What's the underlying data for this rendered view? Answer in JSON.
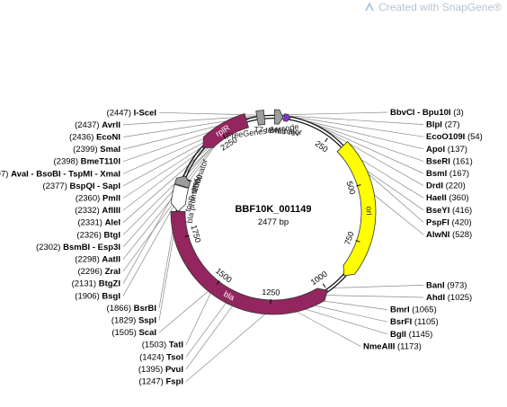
{
  "watermark": "Created with SnapGene®",
  "plasmid": {
    "name": "BBF10K_001149",
    "length": 2477,
    "length_label": "2477 bp"
  },
  "colors": {
    "backbone": "#111111",
    "ori": "#ffff00",
    "bla": "#93265e",
    "rplR": "#93265e",
    "promoter": "#ffffff",
    "terminator": "#9e9e9e",
    "primer": "#8a2be2"
  },
  "ticks": [
    {
      "pos": 250,
      "label": "250"
    },
    {
      "pos": 500,
      "label": "500"
    },
    {
      "pos": 750,
      "label": "750"
    },
    {
      "pos": 1000,
      "label": "1000"
    },
    {
      "pos": 1250,
      "label": "1250"
    },
    {
      "pos": 1500,
      "label": "1500"
    },
    {
      "pos": 1750,
      "label": "1750"
    },
    {
      "pos": 2000,
      "label": "2000"
    },
    {
      "pos": 2250,
      "label": "2250"
    }
  ],
  "features": [
    {
      "id": "ori",
      "label": "ori",
      "start": 320,
      "end": 908,
      "dir": 1,
      "color": "#ffff00",
      "type": "ori"
    },
    {
      "id": "bla",
      "label": "bla",
      "start": 1000,
      "end": 1860,
      "dir": -1,
      "color": "#93265e",
      "type": "cds"
    },
    {
      "id": "rplR",
      "label": "rplR",
      "start": 2150,
      "end": 2365,
      "dir": -1,
      "color": "#93265e",
      "type": "cds"
    },
    {
      "id": "bla-promoter",
      "label": "bla promoter",
      "start": 1860,
      "end": 1965,
      "dir": -1,
      "color": "#ffffff",
      "type": "promoter"
    },
    {
      "id": "tonB-terminator",
      "label": "tonB terminator",
      "start": 1968,
      "end": 2010,
      "dir": 1,
      "color": "#9e9e9e",
      "type": "terminator"
    },
    {
      "id": "FreeGenes-Barcode",
      "label": "FreeGenes Barcode",
      "start": 2410,
      "end": 2440,
      "dir": 0,
      "color": "#9e9e9e",
      "type": "misc"
    },
    {
      "id": "T7-terminator",
      "label": "T7 terminator",
      "start": 5,
      "end": 40,
      "dir": 1,
      "color": "#9e9e9e",
      "type": "terminator"
    },
    {
      "id": "M13-rev",
      "label": "M13 rev",
      "start": 45,
      "end": 70,
      "dir": 1,
      "color": "#8a2be2",
      "type": "primer"
    }
  ],
  "sites": [
    {
      "name": "I-SceI",
      "pos": "2447",
      "side": "L",
      "pos_num": 2447
    },
    {
      "name": "AvrII",
      "pos": "2437",
      "side": "L",
      "pos_num": 2437
    },
    {
      "name": "EcoNI",
      "pos": "2436",
      "side": "L",
      "pos_num": 2436
    },
    {
      "name": "SmaI",
      "pos": "2399",
      "side": "L",
      "pos_num": 2399
    },
    {
      "name": "BmeT110I",
      "pos": "2398",
      "side": "L",
      "pos_num": 2398
    },
    {
      "name": "AvaI - BsoBI - TspMI - XmaI",
      "pos": "2397",
      "side": "L",
      "pos_num": 2397
    },
    {
      "name": "BspQI - SapI",
      "pos": "2377",
      "side": "L",
      "pos_num": 2377
    },
    {
      "name": "PmlI",
      "pos": "2360",
      "side": "L",
      "pos_num": 2360
    },
    {
      "name": "AflIII",
      "pos": "2332",
      "side": "L",
      "pos_num": 2332
    },
    {
      "name": "AleI",
      "pos": "2331",
      "side": "L",
      "pos_num": 2331
    },
    {
      "name": "BtgI",
      "pos": "2326",
      "side": "L",
      "pos_num": 2326
    },
    {
      "name": "BsmBI - Esp3I",
      "pos": "2302",
      "side": "L",
      "pos_num": 2302
    },
    {
      "name": "AatII",
      "pos": "2298",
      "side": "L",
      "pos_num": 2298
    },
    {
      "name": "ZraI",
      "pos": "2296",
      "side": "L",
      "pos_num": 2296
    },
    {
      "name": "BtgZI",
      "pos": "2131",
      "side": "L",
      "pos_num": 2131
    },
    {
      "name": "BsgI",
      "pos": "1906",
      "side": "L",
      "pos_num": 1906
    },
    {
      "name": "BsrBI",
      "pos": "1866",
      "side": "L",
      "pos_num": 1866
    },
    {
      "name": "SspI",
      "pos": "1829",
      "side": "L",
      "pos_num": 1829
    },
    {
      "name": "ScaI",
      "pos": "1505",
      "side": "L",
      "pos_num": 1505
    },
    {
      "name": "TatI",
      "pos": "1503",
      "side": "L",
      "pos_num": 1503
    },
    {
      "name": "TsoI",
      "pos": "1424",
      "side": "L",
      "pos_num": 1424
    },
    {
      "name": "PvuI",
      "pos": "1395",
      "side": "L",
      "pos_num": 1395
    },
    {
      "name": "FspI",
      "pos": "1247",
      "side": "L",
      "pos_num": 1247
    },
    {
      "name": "BbvCI - Bpu10I",
      "pos": "3",
      "side": "R",
      "pos_num": 3
    },
    {
      "name": "BlpI",
      "pos": "27",
      "side": "R",
      "pos_num": 27
    },
    {
      "name": "EcoO109I",
      "pos": "54",
      "side": "R",
      "pos_num": 54
    },
    {
      "name": "ApoI",
      "pos": "137",
      "side": "R",
      "pos_num": 137
    },
    {
      "name": "BseRI",
      "pos": "161",
      "side": "R",
      "pos_num": 161
    },
    {
      "name": "BsmI",
      "pos": "167",
      "side": "R",
      "pos_num": 167
    },
    {
      "name": "DrdI",
      "pos": "220",
      "side": "R",
      "pos_num": 220
    },
    {
      "name": "HaeII",
      "pos": "360",
      "side": "R",
      "pos_num": 360
    },
    {
      "name": "BseYI",
      "pos": "416",
      "side": "R",
      "pos_num": 416
    },
    {
      "name": "PspFI",
      "pos": "420",
      "side": "R",
      "pos_num": 420
    },
    {
      "name": "AlwNI",
      "pos": "528",
      "side": "R",
      "pos_num": 528
    },
    {
      "name": "BanI",
      "pos": "973",
      "side": "R",
      "pos_num": 973
    },
    {
      "name": "AhdI",
      "pos": "1025",
      "side": "R",
      "pos_num": 1025
    },
    {
      "name": "BmrI",
      "pos": "1065",
      "side": "R",
      "pos_num": 1065
    },
    {
      "name": "BsrFI",
      "pos": "1105",
      "side": "R",
      "pos_num": 1105
    },
    {
      "name": "BglI",
      "pos": "1145",
      "side": "R",
      "pos_num": 1145
    },
    {
      "name": "NmeAIII",
      "pos": "1173",
      "side": "R",
      "pos_num": 1173
    }
  ]
}
